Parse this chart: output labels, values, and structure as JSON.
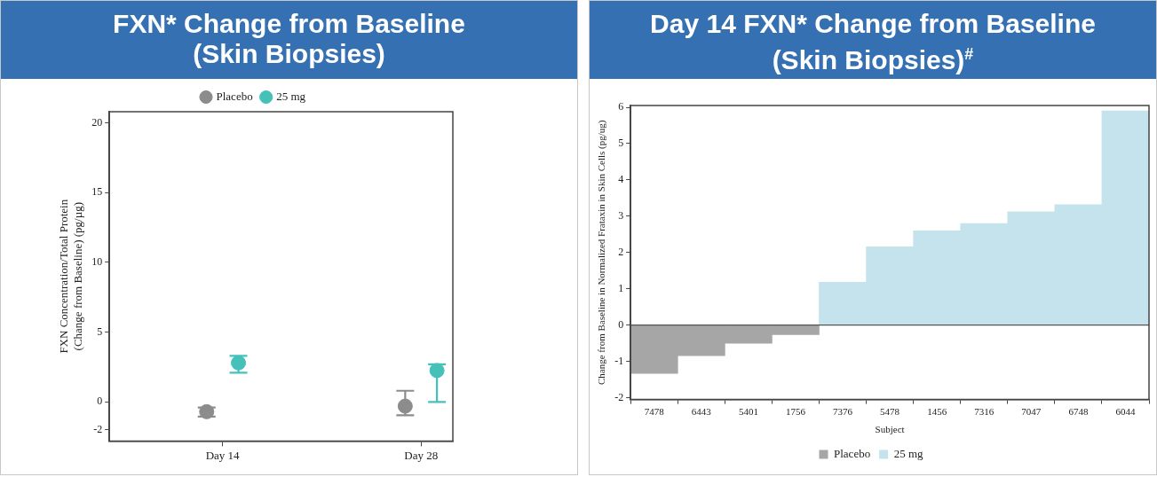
{
  "chart_data": [
    {
      "type": "scatter",
      "title": "FXN* Change from Baseline\n(Skin Biopsies)",
      "ylabel": "FXN Concentration/Total Protein\n(Change from Baseline) (pg/µg)",
      "categories": [
        "Day 14",
        "Day 28"
      ],
      "series": [
        {
          "name": "Placebo",
          "color": "#8c8c8c",
          "values": [
            -0.7,
            -0.3
          ],
          "errors": [
            [
              -1.05,
              -0.4
            ],
            [
              -0.95,
              0.8
            ]
          ]
        },
        {
          "name": "25 mg",
          "color": "#45c1b9",
          "values": [
            2.8,
            2.25
          ],
          "errors": [
            [
              2.1,
              3.3
            ],
            [
              0,
              2.7
            ]
          ]
        }
      ],
      "ylim": [
        -2.8,
        20.8
      ],
      "yticks": [
        -2,
        0,
        5,
        10,
        15,
        20
      ],
      "grid": false,
      "legend": "top",
      "marker": "circle"
    },
    {
      "type": "bar",
      "title": "Day 14 FXN* Change from Baseline\n(Skin Biopsies)$^{#}$",
      "xlabel": "Subject",
      "ylabel": "Change from Baseline in Normalized Frataxin in Skin Cells (pg/ug)",
      "categories": [
        "7478",
        "6443",
        "5401",
        "1756",
        "7376",
        "5478",
        "1456",
        "7316",
        "7047",
        "6748",
        "6044"
      ],
      "series": [
        {
          "name": "Placebo",
          "color": "#a6a6a6",
          "values": [
            -1.33,
            -0.84,
            -0.5,
            -0.26,
            null,
            null,
            null,
            null,
            null,
            null,
            null
          ]
        },
        {
          "name": "25 mg",
          "color": "#c5e3ec",
          "values": [
            null,
            null,
            null,
            null,
            1.18,
            2.16,
            2.6,
            2.8,
            3.12,
            3.32,
            5.9
          ]
        }
      ],
      "ylim": [
        -2.05,
        6.05
      ],
      "yticks": [
        -2,
        -1,
        0,
        1,
        2,
        3,
        4,
        5,
        6
      ],
      "grid": false,
      "legend": "bottom",
      "ref_lines": [
        {
          "axis": "y",
          "value": 0,
          "color": "#555555"
        }
      ]
    }
  ]
}
